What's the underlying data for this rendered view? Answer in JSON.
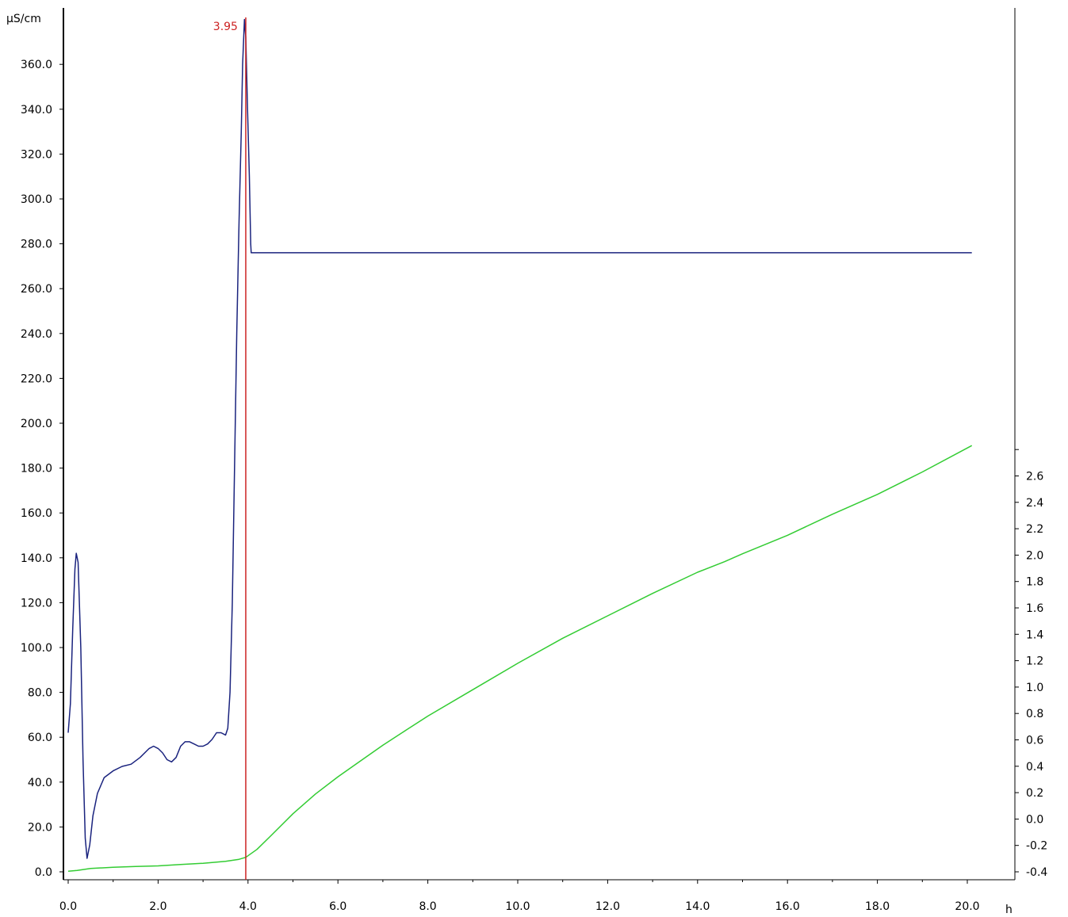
{
  "chart_data": {
    "type": "line",
    "x_axis": {
      "unit": "h",
      "range": [
        0,
        20.2
      ],
      "ticks": [
        0,
        2,
        4,
        6,
        8,
        10,
        12,
        14,
        16,
        18,
        20
      ],
      "tick_labels": [
        "0.0",
        "2.0",
        "4.0",
        "6.0",
        "8.0",
        "10.0",
        "12.0",
        "14.0",
        "16.0",
        "18.0",
        "20.0"
      ]
    },
    "y_axis_left": {
      "unit": "µS/cm",
      "range": [
        0,
        385
      ],
      "ticks": [
        0,
        20,
        40,
        60,
        80,
        100,
        120,
        140,
        160,
        180,
        200,
        220,
        240,
        260,
        280,
        300,
        320,
        340,
        360
      ],
      "tick_labels": [
        "0.0",
        "20.0",
        "40.0",
        "60.0",
        "80.0",
        "100.0",
        "120.0",
        "140.0",
        "160.0",
        "180.0",
        "200.0",
        "220.0",
        "240.0",
        "260.0",
        "280.0",
        "300.0",
        "320.0",
        "340.0",
        "360.0"
      ]
    },
    "y_axis_right": {
      "range": [
        -0.4,
        2.85
      ],
      "ticks": [
        -0.4,
        -0.2,
        0,
        0.2,
        0.4,
        0.6,
        0.8,
        1.0,
        1.2,
        1.4,
        1.6,
        1.8,
        2.0,
        2.2,
        2.4,
        2.6
      ],
      "tick_labels": [
        "-0.4",
        "-0.2",
        "0.0",
        "0.2",
        "0.4",
        "0.6",
        "0.8",
        "1.0",
        "1.2",
        "1.4",
        "1.6",
        "1.8",
        "2.0",
        "2.2",
        "2.4",
        "2.6"
      ]
    },
    "marker": {
      "x": 3.95,
      "label": "3.95",
      "color": "#cc2222"
    },
    "series": [
      {
        "axis": "left",
        "color": "#1a237e",
        "points": [
          [
            0.0,
            62
          ],
          [
            0.05,
            75
          ],
          [
            0.1,
            108
          ],
          [
            0.15,
            135
          ],
          [
            0.18,
            142
          ],
          [
            0.22,
            138
          ],
          [
            0.28,
            100
          ],
          [
            0.33,
            50
          ],
          [
            0.38,
            15
          ],
          [
            0.42,
            6
          ],
          [
            0.48,
            12
          ],
          [
            0.55,
            25
          ],
          [
            0.65,
            35
          ],
          [
            0.8,
            42
          ],
          [
            1.0,
            45
          ],
          [
            1.2,
            47
          ],
          [
            1.4,
            48
          ],
          [
            1.6,
            51
          ],
          [
            1.8,
            55
          ],
          [
            1.9,
            56
          ],
          [
            2.0,
            55
          ],
          [
            2.1,
            53
          ],
          [
            2.2,
            50
          ],
          [
            2.3,
            49
          ],
          [
            2.4,
            51
          ],
          [
            2.5,
            56
          ],
          [
            2.6,
            58
          ],
          [
            2.7,
            58
          ],
          [
            2.8,
            57
          ],
          [
            2.9,
            56
          ],
          [
            3.0,
            56
          ],
          [
            3.1,
            57
          ],
          [
            3.2,
            59
          ],
          [
            3.3,
            62
          ],
          [
            3.4,
            62
          ],
          [
            3.5,
            61
          ],
          [
            3.55,
            64
          ],
          [
            3.6,
            80
          ],
          [
            3.65,
            120
          ],
          [
            3.7,
            180
          ],
          [
            3.75,
            240
          ],
          [
            3.8,
            290
          ],
          [
            3.85,
            330
          ],
          [
            3.88,
            360
          ],
          [
            3.92,
            380
          ],
          [
            3.95,
            372
          ],
          [
            3.99,
            340
          ],
          [
            4.03,
            310
          ],
          [
            4.06,
            280
          ],
          [
            4.07,
            276
          ],
          [
            20.1,
            276
          ]
        ]
      },
      {
        "axis": "right",
        "color": "#33cc33",
        "points": [
          [
            0.0,
            -0.395
          ],
          [
            0.2,
            -0.39
          ],
          [
            0.5,
            -0.375
          ],
          [
            1.0,
            -0.365
          ],
          [
            1.5,
            -0.36
          ],
          [
            2.0,
            -0.355
          ],
          [
            2.5,
            -0.345
          ],
          [
            3.0,
            -0.335
          ],
          [
            3.5,
            -0.32
          ],
          [
            3.8,
            -0.305
          ],
          [
            3.95,
            -0.29
          ],
          [
            4.2,
            -0.23
          ],
          [
            4.5,
            -0.13
          ],
          [
            5.0,
            0.04
          ],
          [
            5.5,
            0.19
          ],
          [
            6.0,
            0.32
          ],
          [
            6.5,
            0.44
          ],
          [
            7.0,
            0.56
          ],
          [
            7.5,
            0.67
          ],
          [
            8.0,
            0.78
          ],
          [
            9.0,
            0.98
          ],
          [
            10.0,
            1.18
          ],
          [
            11.0,
            1.37
          ],
          [
            12.0,
            1.54
          ],
          [
            13.0,
            1.71
          ],
          [
            14.0,
            1.87
          ],
          [
            14.6,
            1.95
          ],
          [
            15.0,
            2.01
          ],
          [
            16.0,
            2.15
          ],
          [
            17.0,
            2.31
          ],
          [
            18.0,
            2.46
          ],
          [
            19.0,
            2.63
          ],
          [
            20.1,
            2.83
          ]
        ]
      }
    ]
  }
}
